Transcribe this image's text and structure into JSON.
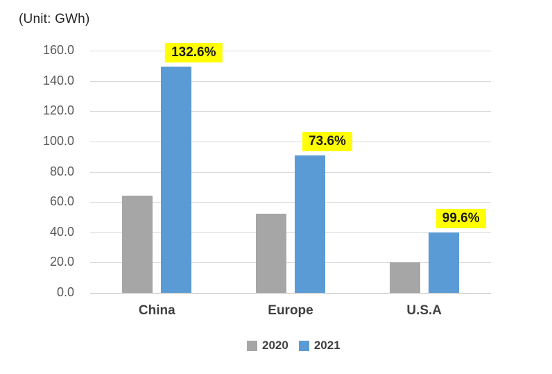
{
  "chart_data": {
    "type": "bar",
    "unit_label": "(Unit: GWh)",
    "categories": [
      "China",
      "Europe",
      "U.S.A"
    ],
    "series": [
      {
        "name": "2020",
        "color": "#a6a6a6",
        "values": [
          64.2,
          52.4,
          20.0
        ]
      },
      {
        "name": "2021",
        "color": "#5b9bd5",
        "values": [
          149.5,
          91.0,
          39.9
        ]
      }
    ],
    "growth_labels": [
      "132.6%",
      "73.6%",
      "99.6%"
    ],
    "growth_label_bg": "#ffff00",
    "y_axis": {
      "min": 0,
      "max": 160,
      "step": 20,
      "tick_labels": [
        "0.0",
        "20.0",
        "40.0",
        "60.0",
        "80.0",
        "100.0",
        "120.0",
        "140.0",
        "160.0"
      ]
    },
    "legend": [
      "2020",
      "2021"
    ],
    "layout": {
      "grid": "horizontal gridlines on",
      "legend_position": "bottom center",
      "gridline_color": "#d9d9d9",
      "axis_line_color": "#b7b7b7"
    }
  }
}
